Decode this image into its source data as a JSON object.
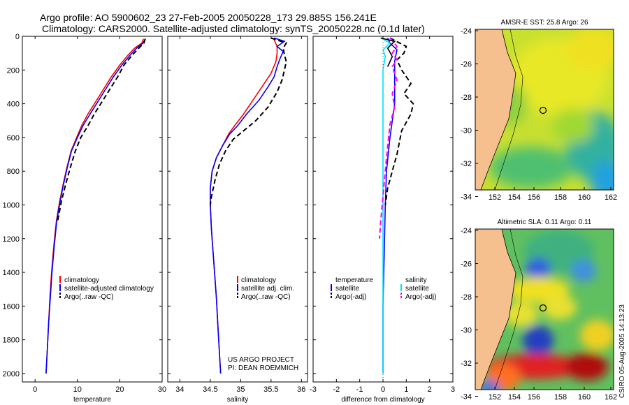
{
  "header": {
    "title_line1": "Argo profile: AO 5900602_23 27-Feb-2005 20050228_173 29.885S 156.241E",
    "title_line2": "Climatology: CARS2000. Satellite-adjusted climatology: synTS_20050228.nc (0.1d later)"
  },
  "side_stamp": "CSIRO 05-Aug-2005 14:13:23",
  "colors": {
    "red": "#ff0000",
    "blue": "#0000ff",
    "black": "#000000",
    "cyan": "#00e0ff",
    "magenta": "#ff00ff",
    "land": "#f5c08e"
  },
  "chart_data": [
    {
      "type": "line",
      "id": "temperature",
      "xlabel": "temperature",
      "xlim": [
        -3,
        30
      ],
      "ylim": [
        2050,
        0
      ],
      "x_ticks": [
        0,
        10,
        20,
        30
      ],
      "y_ticks": [
        0,
        200,
        400,
        600,
        800,
        1000,
        1200,
        1400,
        1600,
        1800,
        2000
      ],
      "legend": [
        "climatology",
        "satellite-adjusted climatology",
        "Argo(..raw -QC)"
      ],
      "series": [
        {
          "name": "climatology",
          "color": "red",
          "dash": "",
          "points": [
            [
              25.6,
              15
            ],
            [
              25.2,
              40
            ],
            [
              23.5,
              70
            ],
            [
              22,
              110
            ],
            [
              20,
              170
            ],
            [
              18,
              240
            ],
            [
              16.5,
              300
            ],
            [
              14.5,
              380
            ],
            [
              12.5,
              460
            ],
            [
              11,
              530
            ],
            [
              9.8,
              600
            ],
            [
              8.5,
              680
            ],
            [
              7.5,
              780
            ],
            [
              6.6,
              880
            ],
            [
              5.8,
              980
            ],
            [
              5,
              1100
            ],
            [
              4.4,
              1250
            ],
            [
              3.9,
              1400
            ],
            [
              3.5,
              1550
            ],
            [
              3.2,
              1700
            ],
            [
              2.9,
              1850
            ],
            [
              2.6,
              2000
            ]
          ]
        },
        {
          "name": "satellite-adjusted climatology",
          "color": "blue",
          "dash": "",
          "points": [
            [
              26,
              15
            ],
            [
              25.5,
              40
            ],
            [
              24,
              70
            ],
            [
              22.5,
              110
            ],
            [
              20.5,
              170
            ],
            [
              18.5,
              240
            ],
            [
              17,
              300
            ],
            [
              15,
              380
            ],
            [
              13,
              460
            ],
            [
              11.3,
              530
            ],
            [
              10,
              600
            ],
            [
              8.6,
              680
            ],
            [
              7.6,
              780
            ],
            [
              6.7,
              880
            ],
            [
              5.9,
              980
            ],
            [
              5.1,
              1100
            ],
            [
              4.5,
              1250
            ],
            [
              4,
              1400
            ],
            [
              3.6,
              1550
            ],
            [
              3.2,
              1700
            ],
            [
              2.9,
              1850
            ],
            [
              2.6,
              2000
            ]
          ]
        },
        {
          "name": "Argo(..raw -QC)",
          "color": "black",
          "dash": "7,4",
          "points": [
            [
              26,
              15
            ],
            [
              25.7,
              40
            ],
            [
              24.5,
              70
            ],
            [
              23,
              110
            ],
            [
              21,
              170
            ],
            [
              19.5,
              240
            ],
            [
              18,
              300
            ],
            [
              16,
              380
            ],
            [
              14,
              460
            ],
            [
              12.5,
              530
            ],
            [
              10.8,
              600
            ],
            [
              9.5,
              680
            ],
            [
              8.3,
              780
            ],
            [
              7.2,
              880
            ],
            [
              6.2,
              980
            ],
            [
              5.3,
              1100
            ]
          ]
        }
      ]
    },
    {
      "type": "line",
      "id": "salinity",
      "xlabel": "salinity",
      "xlim": [
        33.8,
        36.1
      ],
      "ylim": [
        2050,
        0
      ],
      "x_ticks": [
        34,
        34.5,
        35,
        35.5,
        36
      ],
      "y_ticks": [
        0,
        200,
        400,
        600,
        800,
        1000,
        1200,
        1400,
        1600,
        1800,
        2000
      ],
      "legend": [
        "climatology",
        "satellite adj. clim.",
        "Argo(..raw -QC)"
      ],
      "annotation": [
        "US ARGO PROJECT",
        "PI: DEAN ROEMMICH"
      ],
      "series": [
        {
          "name": "climatology",
          "color": "red",
          "dash": "",
          "points": [
            [
              35.55,
              20
            ],
            [
              35.6,
              60
            ],
            [
              35.6,
              100
            ],
            [
              35.58,
              150
            ],
            [
              35.5,
              220
            ],
            [
              35.35,
              300
            ],
            [
              35.2,
              380
            ],
            [
              35.05,
              460
            ],
            [
              34.9,
              530
            ],
            [
              34.8,
              580
            ],
            [
              34.7,
              650
            ],
            [
              34.6,
              720
            ],
            [
              34.53,
              800
            ],
            [
              34.5,
              900
            ],
            [
              34.5,
              1000
            ],
            [
              34.52,
              1150
            ],
            [
              34.56,
              1350
            ],
            [
              34.6,
              1550
            ],
            [
              34.63,
              1750
            ],
            [
              34.67,
              2000
            ]
          ]
        },
        {
          "name": "satellite adj. clim.",
          "color": "blue",
          "dash": "",
          "points": [
            [
              35.55,
              10
            ],
            [
              35.72,
              30
            ],
            [
              35.6,
              60
            ],
            [
              35.7,
              90
            ],
            [
              35.65,
              130
            ],
            [
              35.6,
              180
            ],
            [
              35.55,
              240
            ],
            [
              35.45,
              300
            ],
            [
              35.3,
              380
            ],
            [
              35.1,
              460
            ],
            [
              34.95,
              530
            ],
            [
              34.82,
              580
            ],
            [
              34.7,
              650
            ],
            [
              34.6,
              720
            ],
            [
              34.53,
              800
            ],
            [
              34.5,
              900
            ],
            [
              34.5,
              1000
            ],
            [
              34.52,
              1150
            ],
            [
              34.56,
              1350
            ],
            [
              34.6,
              1550
            ],
            [
              34.63,
              1750
            ],
            [
              34.67,
              2000
            ]
          ]
        },
        {
          "name": "Argo(..raw -QC)",
          "color": "black",
          "dash": "7,4",
          "points": [
            [
              35.5,
              10
            ],
            [
              35.75,
              40
            ],
            [
              35.7,
              70
            ],
            [
              35.72,
              110
            ],
            [
              35.75,
              150
            ],
            [
              35.72,
              200
            ],
            [
              35.68,
              260
            ],
            [
              35.6,
              330
            ],
            [
              35.45,
              420
            ],
            [
              35.25,
              500
            ],
            [
              35.05,
              560
            ],
            [
              34.88,
              610
            ],
            [
              34.75,
              680
            ],
            [
              34.65,
              760
            ],
            [
              34.58,
              850
            ],
            [
              34.52,
              950
            ],
            [
              34.5,
              1000
            ]
          ]
        }
      ]
    },
    {
      "type": "line",
      "id": "difference",
      "xlabel": "difference from climatology",
      "xlim": [
        -3,
        3
      ],
      "ylim": [
        2050,
        0
      ],
      "x_ticks": [
        -3,
        -2,
        -1,
        0,
        1,
        2,
        3
      ],
      "y_ticks": [
        0,
        200,
        400,
        600,
        800,
        1000,
        1200,
        1400,
        1600,
        1800,
        2000
      ],
      "legend_temperature": [
        "temperature",
        "satellite",
        "Argo(-adj)"
      ],
      "legend_salinity": [
        "salinity",
        "satellite",
        "Argo(-adj)"
      ],
      "series": [
        {
          "name": "temperature satellite",
          "color": "blue",
          "dash": "",
          "points": [
            [
              0.2,
              10
            ],
            [
              0.3,
              40
            ],
            [
              0.6,
              80
            ],
            [
              0.5,
              150
            ],
            [
              0.5,
              250
            ],
            [
              0.5,
              400
            ],
            [
              0.3,
              600
            ],
            [
              0.15,
              800
            ],
            [
              0.1,
              1000
            ],
            [
              0.05,
              1300
            ],
            [
              0,
              1600
            ],
            [
              0,
              2000
            ]
          ]
        },
        {
          "name": "temperature Argo(-adj)",
          "color": "black",
          "dash": "7,4",
          "points": [
            [
              0.3,
              10
            ],
            [
              1,
              60
            ],
            [
              0.9,
              100
            ],
            [
              0.6,
              140
            ],
            [
              0.8,
              200
            ],
            [
              1.2,
              280
            ],
            [
              0.9,
              340
            ],
            [
              1.3,
              400
            ],
            [
              1.2,
              460
            ],
            [
              0.8,
              560
            ],
            [
              0.6,
              700
            ],
            [
              0.4,
              800
            ],
            [
              0.2,
              900
            ],
            [
              0.1,
              1000
            ]
          ]
        },
        {
          "name": "salinity satellite",
          "color": "cyan",
          "dash": "",
          "points": [
            [
              -0.1,
              10
            ],
            [
              0.3,
              40
            ],
            [
              0,
              80
            ],
            [
              0.1,
              120
            ],
            [
              0,
              200
            ],
            [
              0,
              400
            ],
            [
              0,
              800
            ],
            [
              0,
              1200
            ],
            [
              0,
              2000
            ]
          ]
        },
        {
          "name": "salinity Argo(-adj)",
          "color": "magenta",
          "dash": "7,4",
          "points": [
            [
              0.3,
              10
            ],
            [
              0.6,
              60
            ],
            [
              0.4,
              100
            ],
            [
              0.6,
              140
            ],
            [
              0.4,
              180
            ],
            [
              0.6,
              260
            ],
            [
              0.4,
              340
            ],
            [
              0.5,
              420
            ],
            [
              0.3,
              520
            ],
            [
              0.2,
              650
            ],
            [
              0.1,
              800
            ],
            [
              0,
              950
            ],
            [
              -0.1,
              1100
            ],
            [
              -0.15,
              1200
            ]
          ]
        },
        {
          "name": "salinity extra black",
          "color": "black",
          "dash": "",
          "points": [
            [
              -0.1,
              10
            ],
            [
              0.5,
              30
            ],
            [
              0.2,
              70
            ],
            [
              0.4,
              120
            ],
            [
              0.2,
              180
            ]
          ]
        }
      ]
    }
  ],
  "maps": [
    {
      "id": "sst",
      "title": "AMSR-E SST: 25.8 Argo: 26",
      "lon_ticks": [
        "152",
        "154",
        "156",
        "158",
        "160",
        "162"
      ],
      "lat_ticks": [
        "-24",
        "-26",
        "-28",
        "-30",
        "-32",
        "-34"
      ]
    },
    {
      "id": "sla",
      "title": "Altimetric SLA: 0.11 Argo: 0.11",
      "lon_ticks": [
        "152",
        "154",
        "156",
        "158",
        "160",
        "162"
      ],
      "lat_ticks": [
        "-24",
        "-26",
        "-28",
        "-30",
        "-32",
        "-34"
      ]
    }
  ]
}
